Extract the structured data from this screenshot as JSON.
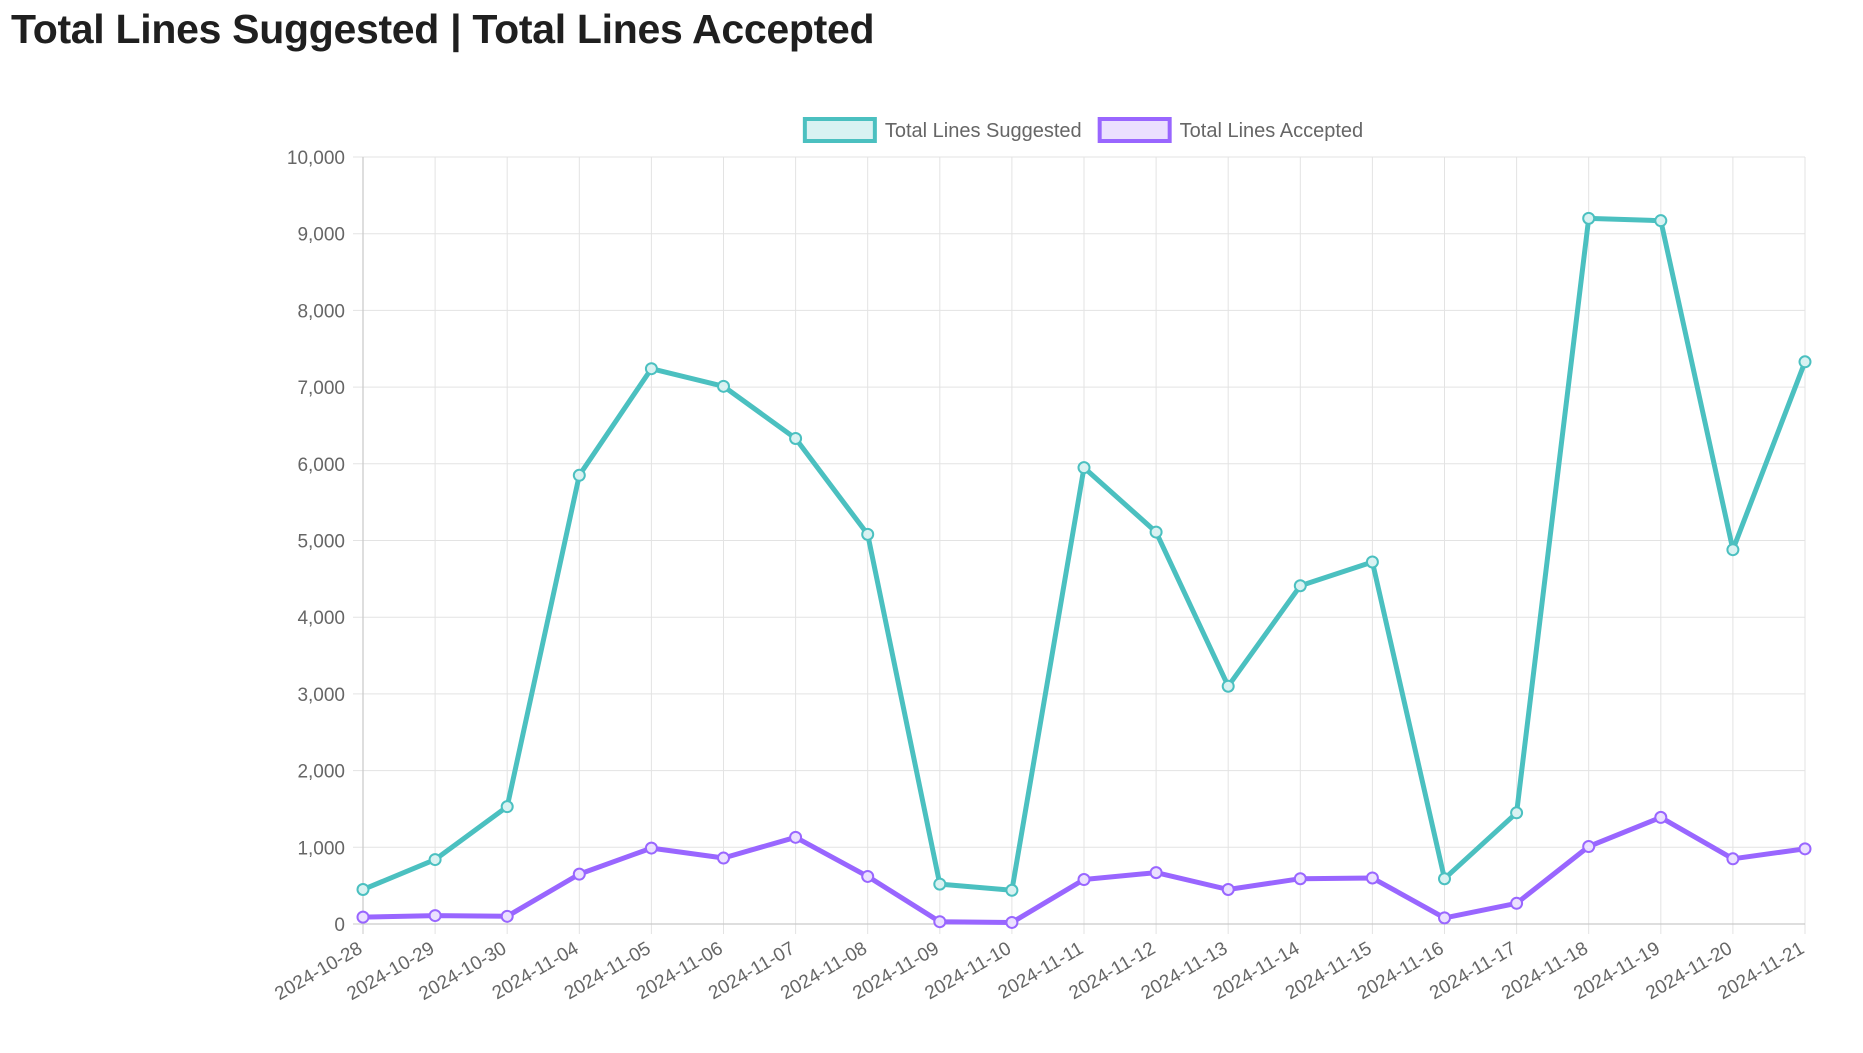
{
  "page": {
    "title": "Total Lines Suggested | Total Lines Accepted"
  },
  "colors": {
    "suggested": "#4bc0c0",
    "suggested_fill": "#d9f2f2",
    "accepted": "#9966ff",
    "accepted_fill": "#ebe0ff",
    "grid": "#e3e3e3",
    "axis": "#c9c9c9",
    "tick_text": "#666666"
  },
  "chart_data": {
    "type": "line",
    "title": "Total Lines Suggested | Total Lines Accepted",
    "xlabel": "",
    "ylabel": "",
    "ylim": [
      0,
      10000
    ],
    "y_tick_step": 1000,
    "grid": true,
    "legend_position": "top-center",
    "categories": [
      "2024-10-28",
      "2024-10-29",
      "2024-10-30",
      "2024-11-04",
      "2024-11-05",
      "2024-11-06",
      "2024-11-07",
      "2024-11-08",
      "2024-11-09",
      "2024-11-10",
      "2024-11-11",
      "2024-11-12",
      "2024-11-13",
      "2024-11-14",
      "2024-11-15",
      "2024-11-16",
      "2024-11-17",
      "2024-11-18",
      "2024-11-19",
      "2024-11-20",
      "2024-11-21"
    ],
    "y_tick_labels": [
      "0",
      "1,000",
      "2,000",
      "3,000",
      "4,000",
      "5,000",
      "6,000",
      "7,000",
      "8,000",
      "9,000",
      "10,000"
    ],
    "series": [
      {
        "name": "Total Lines Suggested",
        "color_key": "suggested",
        "values": [
          450,
          840,
          1530,
          5850,
          7240,
          7010,
          6330,
          5080,
          520,
          440,
          5950,
          5110,
          3100,
          4410,
          4720,
          590,
          1450,
          9200,
          9170,
          4880,
          7330
        ]
      },
      {
        "name": "Total Lines Accepted",
        "color_key": "accepted",
        "values": [
          90,
          110,
          100,
          650,
          990,
          860,
          1130,
          620,
          30,
          20,
          580,
          670,
          450,
          590,
          600,
          80,
          270,
          1010,
          1390,
          850,
          980
        ]
      }
    ]
  }
}
